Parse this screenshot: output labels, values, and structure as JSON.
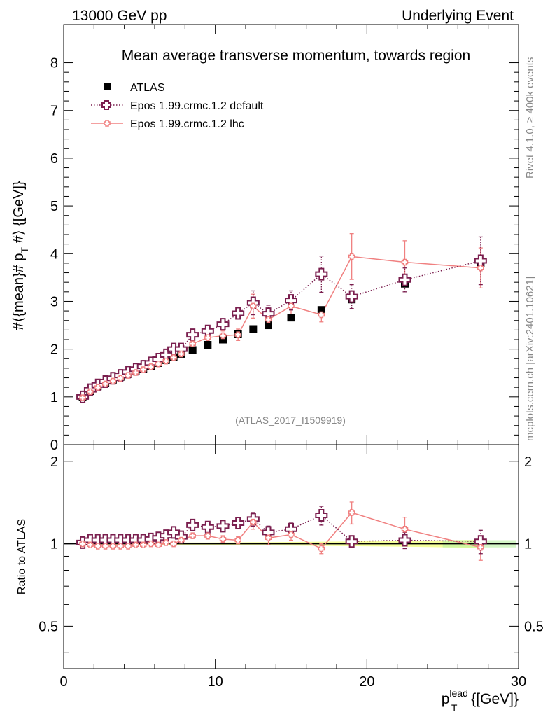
{
  "header": {
    "left": "13000 GeV pp",
    "right": "Underlying Event"
  },
  "side_labels": {
    "top": "Rivet 4.1.0, ≥ 400k events",
    "bottom": "mcplots.cern.ch [arXiv:2401.10621]"
  },
  "chart_data": [
    {
      "type": "scatter",
      "panel": "main",
      "title": "Mean average transverse momentum, towards region",
      "watermark": "(ATLAS_2017_I1509919)",
      "ylabel": "#⟨{mean}# p_T #⟩ {[GeV]}",
      "ylabel_parts": {
        "a": "#⟨{mean}# p",
        "sub": "T",
        "b": " #⟩ {[GeV]}"
      },
      "xlim": [
        0,
        30
      ],
      "ylim": [
        0,
        8.8
      ],
      "yticks": [
        0,
        1,
        2,
        3,
        4,
        5,
        6,
        7,
        8
      ],
      "legend": "top-left",
      "series": [
        {
          "name": "ATLAS",
          "color": "#000000",
          "marker": "square",
          "x": [
            1.25,
            1.75,
            2.25,
            2.75,
            3.25,
            3.75,
            4.25,
            4.75,
            5.25,
            5.75,
            6.25,
            6.75,
            7.25,
            7.75,
            8.5,
            9.5,
            10.5,
            11.5,
            12.5,
            13.5,
            15.0,
            17.0,
            19.0,
            22.5,
            27.5
          ],
          "y": [
            0.99,
            1.12,
            1.22,
            1.29,
            1.36,
            1.42,
            1.48,
            1.54,
            1.59,
            1.65,
            1.71,
            1.77,
            1.83,
            1.9,
            1.98,
            2.09,
            2.2,
            2.31,
            2.42,
            2.5,
            2.66,
            2.82,
            3.04,
            3.37,
            3.8
          ]
        },
        {
          "name": "Epos 1.99.crmc.1.2 default",
          "color": "#7a1e4e",
          "marker": "open-cross",
          "line": "dotted",
          "x": [
            1.25,
            1.75,
            2.25,
            2.75,
            3.25,
            3.75,
            4.25,
            4.75,
            5.25,
            5.75,
            6.25,
            6.75,
            7.25,
            7.75,
            8.5,
            9.5,
            10.5,
            11.5,
            12.5,
            13.5,
            15.0,
            17.0,
            19.0,
            22.5,
            27.5
          ],
          "y": [
            1.0,
            1.15,
            1.25,
            1.32,
            1.39,
            1.45,
            1.52,
            1.58,
            1.64,
            1.71,
            1.79,
            1.88,
            2.0,
            2.0,
            2.3,
            2.38,
            2.52,
            2.75,
            2.97,
            2.74,
            3.02,
            3.57,
            3.1,
            3.45,
            3.85
          ],
          "err": [
            0.02,
            0.02,
            0.02,
            0.02,
            0.02,
            0.02,
            0.02,
            0.03,
            0.03,
            0.03,
            0.03,
            0.04,
            0.04,
            0.05,
            0.06,
            0.08,
            0.1,
            0.12,
            0.25,
            0.18,
            0.2,
            0.38,
            0.25,
            0.25,
            0.5
          ]
        },
        {
          "name": "Epos 1.99.crmc.1.2 lhc",
          "color": "#f08080",
          "marker": "small-cross",
          "line": "solid",
          "x": [
            1.25,
            1.75,
            2.25,
            2.75,
            3.25,
            3.75,
            4.25,
            4.75,
            5.25,
            5.75,
            6.25,
            6.75,
            7.25,
            7.75,
            8.5,
            9.5,
            10.5,
            11.5,
            12.5,
            13.5,
            15.0,
            17.0,
            19.0,
            22.5,
            27.5
          ],
          "y": [
            0.98,
            1.11,
            1.2,
            1.27,
            1.33,
            1.39,
            1.45,
            1.51,
            1.57,
            1.63,
            1.69,
            1.75,
            1.82,
            1.9,
            2.11,
            2.24,
            2.28,
            2.3,
            2.9,
            2.62,
            2.9,
            2.72,
            3.94,
            3.82,
            3.7
          ],
          "err": [
            0.02,
            0.02,
            0.02,
            0.02,
            0.02,
            0.02,
            0.02,
            0.03,
            0.03,
            0.03,
            0.03,
            0.04,
            0.04,
            0.05,
            0.06,
            0.08,
            0.1,
            0.12,
            0.25,
            0.18,
            0.2,
            0.15,
            0.48,
            0.45,
            0.42
          ]
        }
      ]
    },
    {
      "type": "scatter",
      "panel": "ratio",
      "ylabel": "Ratio to ATLAS",
      "xlabel": "p_T^lead {[GeV]}",
      "xlabel_parts": {
        "p": "p",
        "sup": "lead",
        "sub": "T",
        "rest": " {[GeV]}"
      },
      "xlim": [
        0,
        30
      ],
      "ylim": [
        0.35,
        2.3
      ],
      "xticks": [
        0,
        10,
        20,
        30
      ],
      "yticks": [
        0.5,
        1,
        2
      ],
      "ytick_labels": [
        "0.5",
        "1",
        "2"
      ],
      "series": [
        {
          "name": "Epos 1.99.crmc.1.2 default",
          "color": "#7a1e4e",
          "x": [
            1.25,
            1.75,
            2.25,
            2.75,
            3.25,
            3.75,
            4.25,
            4.75,
            5.25,
            5.75,
            6.25,
            6.75,
            7.25,
            7.75,
            8.5,
            9.5,
            10.5,
            11.5,
            12.5,
            13.5,
            15.0,
            17.0,
            19.0,
            22.5,
            27.5
          ],
          "y": [
            1.01,
            1.03,
            1.03,
            1.03,
            1.03,
            1.03,
            1.03,
            1.03,
            1.03,
            1.04,
            1.05,
            1.07,
            1.1,
            1.06,
            1.17,
            1.15,
            1.16,
            1.19,
            1.23,
            1.1,
            1.13,
            1.27,
            1.02,
            1.03,
            1.02
          ],
          "err": [
            0.01,
            0.01,
            0.01,
            0.01,
            0.01,
            0.01,
            0.01,
            0.01,
            0.01,
            0.02,
            0.02,
            0.02,
            0.02,
            0.02,
            0.03,
            0.04,
            0.04,
            0.04,
            0.07,
            0.06,
            0.06,
            0.1,
            0.05,
            0.07,
            0.1
          ]
        },
        {
          "name": "Epos 1.99.crmc.1.2 lhc",
          "color": "#f08080",
          "x": [
            1.25,
            1.75,
            2.25,
            2.75,
            3.25,
            3.75,
            4.25,
            4.75,
            5.25,
            5.75,
            6.25,
            6.75,
            7.25,
            7.75,
            8.5,
            9.5,
            10.5,
            11.5,
            12.5,
            13.5,
            15.0,
            17.0,
            19.0,
            22.5,
            27.5
          ],
          "y": [
            1.0,
            0.99,
            0.98,
            0.98,
            0.98,
            0.98,
            0.98,
            0.99,
            0.99,
            1.0,
            0.99,
            1.01,
            1.0,
            1.03,
            1.07,
            1.07,
            1.04,
            1.03,
            1.2,
            1.05,
            1.08,
            0.96,
            1.3,
            1.13,
            0.97
          ],
          "err": [
            0.01,
            0.01,
            0.01,
            0.01,
            0.01,
            0.01,
            0.01,
            0.01,
            0.01,
            0.01,
            0.01,
            0.01,
            0.02,
            0.02,
            0.02,
            0.03,
            0.03,
            0.03,
            0.07,
            0.06,
            0.05,
            0.04,
            0.12,
            0.12,
            0.1
          ]
        }
      ]
    }
  ]
}
